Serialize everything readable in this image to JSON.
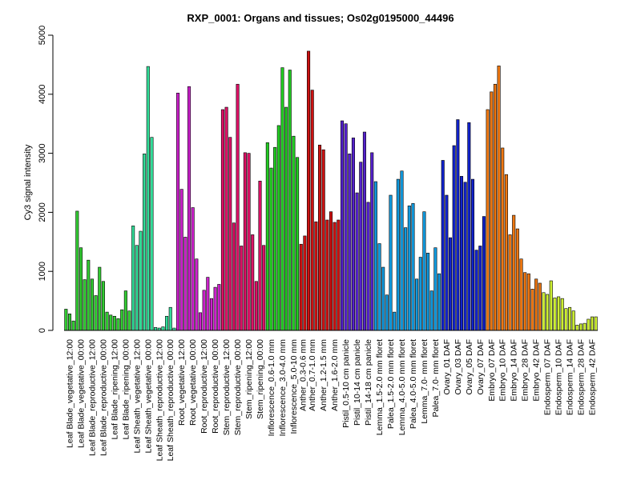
{
  "chart_data": {
    "type": "bar",
    "title": "RXP_0001: Organs and tissues; Os02g0195000_44496",
    "xlabel": "",
    "ylabel": "Cy3 signal intensity",
    "ylim": [
      0,
      5000
    ],
    "yticks": [
      0,
      1000,
      2000,
      3000,
      4000,
      5000
    ],
    "grid": false,
    "legend": "none",
    "groups": [
      {
        "label": "Leaf Blade_vegetative_12:00",
        "color": "#33cc33",
        "values": [
          360,
          280,
          160
        ]
      },
      {
        "label": "Leaf Blade_vegetative_00:00",
        "color": "#33cc33",
        "values": [
          2020,
          1400,
          860
        ]
      },
      {
        "label": "Leaf Blade_reproductive_12:00",
        "color": "#33cc33",
        "values": [
          1190,
          870,
          590
        ]
      },
      {
        "label": "Leaf Blade_reproductive_00:00",
        "color": "#33cc33",
        "values": [
          1070,
          830,
          310
        ]
      },
      {
        "label": "Leaf Blade_ripening_12:00",
        "color": "#33cc33",
        "values": [
          260,
          240,
          200
        ]
      },
      {
        "label": "Leaf Blade_ripening_00:00",
        "color": "#33cc33",
        "values": [
          350,
          670,
          330
        ]
      },
      {
        "label": "Leaf Sheath_vegetative_12:00",
        "color": "#33dd99",
        "values": [
          1770,
          1440,
          1680
        ]
      },
      {
        "label": "Leaf Sheath_vegetative_00:00",
        "color": "#33dd99",
        "values": [
          2990,
          4470,
          3270
        ]
      },
      {
        "label": "Leaf Sheath_reproductive_12:00",
        "color": "#33dd99",
        "values": [
          50,
          40,
          60
        ]
      },
      {
        "label": "Leaf Sheath_reproductive_00:00",
        "color": "#33dd99",
        "values": [
          240,
          390,
          40
        ]
      },
      {
        "label": "Root_vegetative_12:00",
        "color": "#cc22cc",
        "values": [
          4020,
          2390,
          1580
        ]
      },
      {
        "label": "Root_vegetative_00:00",
        "color": "#cc22cc",
        "values": [
          4130,
          2080,
          1210
        ]
      },
      {
        "label": "Root_reproductive_12:00",
        "color": "#cc22cc",
        "values": [
          300,
          680,
          900
        ]
      },
      {
        "label": "Root_reproductive_00:00",
        "color": "#cc22cc",
        "values": [
          540,
          730,
          780
        ]
      },
      {
        "label": "Stem_reproductive_12:00",
        "color": "#dd1166",
        "values": [
          3740,
          3780,
          3270
        ]
      },
      {
        "label": "Stem_reproductive_00:00",
        "color": "#dd1166",
        "values": [
          1820,
          4170,
          1430
        ]
      },
      {
        "label": "Stem_ripening_12:00",
        "color": "#dd1166",
        "values": [
          3010,
          3000,
          1620
        ]
      },
      {
        "label": "Stem_ripening_00:00",
        "color": "#dd1166",
        "values": [
          830,
          2530,
          1440
        ]
      },
      {
        "label": "Inflorescence_0.6-1.0 mm",
        "color": "#22cc22",
        "values": [
          3180,
          2750,
          3100
        ]
      },
      {
        "label": "Inflorescence_3.0-4.0 mm",
        "color": "#22cc22",
        "values": [
          3470,
          4450,
          3780
        ]
      },
      {
        "label": "Inflorescence_5.0-10 mm",
        "color": "#22cc22",
        "values": [
          4410,
          3290,
          2930
        ]
      },
      {
        "label": "Anther_0.3-0.6 mm",
        "color": "#cc1111",
        "values": [
          1460,
          1600
        ]
      },
      {
        "label": "Anther_0.7-1.0 mm",
        "color": "#cc1111",
        "values": [
          4730,
          4070,
          1840
        ]
      },
      {
        "label": "Anther_1.2-1.5 mm",
        "color": "#cc1111",
        "values": [
          3140,
          3060,
          1870
        ]
      },
      {
        "label": "Anther_1.6-2.0 mm",
        "color": "#cc1111",
        "values": [
          2010,
          1830,
          1870
        ]
      },
      {
        "label": "Pistil_0.5-10 cm panicle",
        "color": "#5522cc",
        "values": [
          3550,
          3500,
          2990
        ]
      },
      {
        "label": "Pistil_10-14 cm panicle",
        "color": "#5522cc",
        "values": [
          3260,
          2330,
          2850
        ]
      },
      {
        "label": "Pistil_14-18 cm panicle",
        "color": "#5522cc",
        "values": [
          3360,
          2170,
          3010
        ]
      },
      {
        "label": "Lemma_1.5-2.0 mm floret",
        "color": "#1199dd",
        "values": [
          2520,
          1470,
          1070
        ]
      },
      {
        "label": "Palea_1.5-2.0 mm floret",
        "color": "#1199dd",
        "values": [
          600,
          2290,
          310
        ]
      },
      {
        "label": "Lemma_4.0-5.0 mm floret",
        "color": "#1199dd",
        "values": [
          2560,
          2700,
          1740
        ]
      },
      {
        "label": "Palea_4.0-5.0 mm floret",
        "color": "#1199dd",
        "values": [
          2110,
          2150,
          870
        ]
      },
      {
        "label": "Lemma_7.0- mm floret",
        "color": "#1199dd",
        "values": [
          1240,
          2010,
          1310
        ]
      },
      {
        "label": "Palea_7.0- mm floret",
        "color": "#1199dd",
        "values": [
          670,
          1400,
          960
        ]
      },
      {
        "label": "Ovary_01 DAF",
        "color": "#1122cc",
        "values": [
          2880,
          2290,
          1570
        ]
      },
      {
        "label": "Ovary_03 DAF",
        "color": "#1122cc",
        "values": [
          3130,
          3570,
          2610
        ]
      },
      {
        "label": "Ovary_05 DAF",
        "color": "#1122cc",
        "values": [
          2510,
          3520,
          2560
        ]
      },
      {
        "label": "Ovary_07 DAF",
        "color": "#1122cc",
        "values": [
          1360,
          1430,
          1930
        ]
      },
      {
        "label": "Embryo_07 DAF",
        "color": "#ee7711",
        "values": [
          3740,
          4040,
          4170
        ]
      },
      {
        "label": "Embryo_10 DAF",
        "color": "#ee7711",
        "values": [
          4480,
          3090,
          2640
        ]
      },
      {
        "label": "Embryo_14 DAF",
        "color": "#ee7711",
        "values": [
          1620,
          1950,
          1720
        ]
      },
      {
        "label": "Embryo_28 DAF",
        "color": "#ee7711",
        "values": [
          1210,
          980,
          960
        ]
      },
      {
        "label": "Embryo_42 DAF",
        "color": "#ee7711",
        "values": [
          700,
          870,
          800
        ]
      },
      {
        "label": "Endosperm_07 DAF",
        "color": "#ccee33",
        "values": [
          640,
          610,
          840
        ]
      },
      {
        "label": "Endosperm_10 DAF",
        "color": "#ccee33",
        "values": [
          550,
          570,
          540
        ]
      },
      {
        "label": "Endosperm_14 DAF",
        "color": "#ccee33",
        "values": [
          370,
          390,
          330
        ]
      },
      {
        "label": "Endosperm_28 DAF",
        "color": "#ccee33",
        "values": [
          90,
          110,
          120
        ]
      },
      {
        "label": "Endosperm_42 DAF",
        "color": "#ccee33",
        "values": [
          190,
          230,
          230
        ]
      }
    ],
    "categories": [
      "Leaf Blade_vegetative_12:00",
      "Leaf Blade_vegetative_00:00",
      "Leaf Blade_reproductive_12:00",
      "Leaf Blade_reproductive_00:00",
      "Leaf Blade_ripening_12:00",
      "Leaf Blade_ripening_00:00",
      "Leaf Sheath_vegetative_12:00",
      "Leaf Sheath_vegetative_00:00",
      "Leaf Sheath_reproductive_12:00",
      "Leaf Sheath_reproductive_00:00",
      "Root_vegetative_12:00",
      "Root_vegetative_00:00",
      "Root_reproductive_12:00",
      "Root_reproductive_00:00",
      "Stem_reproductive_12:00",
      "Stem_reproductive_00:00",
      "Stem_ripening_12:00",
      "Stem_ripening_00:00",
      "Inflorescence_0.6-1.0 mm",
      "Inflorescence_3.0-4.0 mm",
      "Inflorescence_5.0-10 mm",
      "Anther_0.3-0.6 mm",
      "Anther_0.7-1.0 mm",
      "Anther_1.2-1.5 mm",
      "Anther_1.6-2.0 mm",
      "Pistil_0.5-10 cm panicle",
      "Pistil_10-14 cm panicle",
      "Pistil_14-18 cm panicle",
      "Lemma_1.5-2.0 mm floret",
      "Palea_1.5-2.0 mm floret",
      "Lemma_4.0-5.0 mm floret",
      "Palea_4.0-5.0 mm floret",
      "Lemma_7.0- mm floret",
      "Palea_7.0- mm floret",
      "Ovary_01 DAF",
      "Ovary_03 DAF",
      "Ovary_05 DAF",
      "Ovary_07 DAF",
      "Embryo_07 DAF",
      "Embryo_10 DAF",
      "Embryo_14 DAF",
      "Embryo_28 DAF",
      "Embryo_42 DAF",
      "Endosperm_07 DAF",
      "Endosperm_10 DAF",
      "Endosperm_14 DAF",
      "Endosperm_28 DAF",
      "Endosperm_42 DAF"
    ]
  }
}
